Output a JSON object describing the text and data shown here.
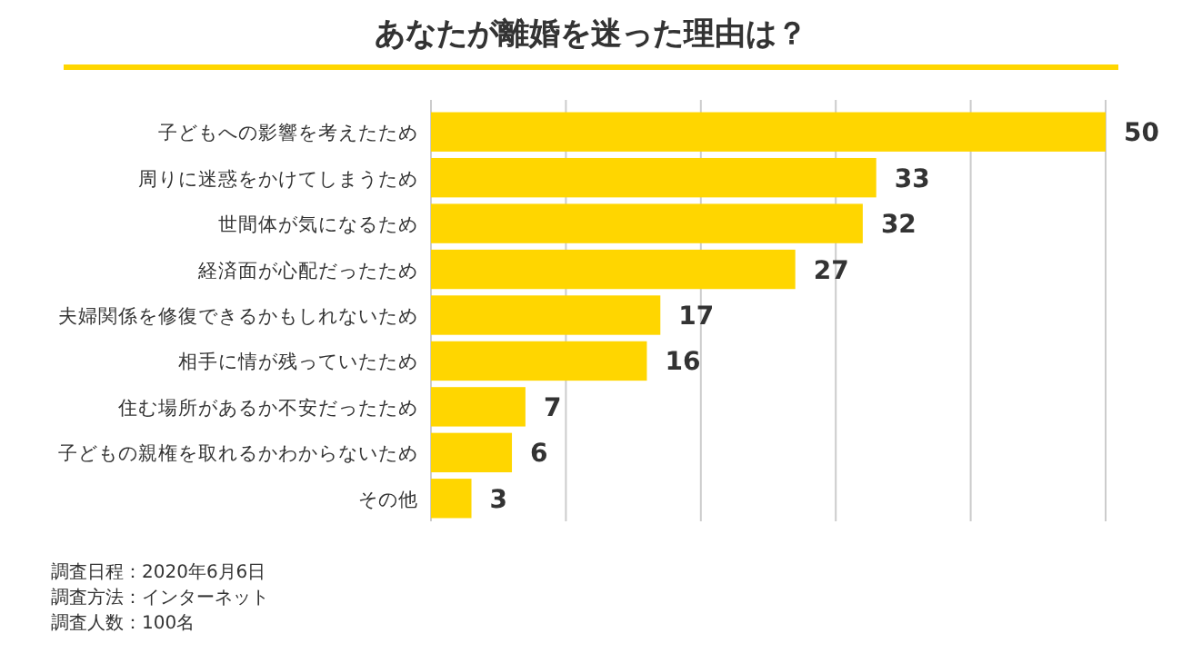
{
  "chart_data": {
    "type": "bar",
    "orientation": "horizontal",
    "title": "あなたが離婚を迷った理由は？",
    "categories": [
      "子どもへの影響を考えたため",
      "周りに迷惑をかけてしまうため",
      "世間体が気になるため",
      "経済面が心配だったため",
      "夫婦関係を修復できるかもしれないため",
      "相手に情が残っていたため",
      "住む場所があるか不安だったため",
      "子どもの親権を取れるかわからないため",
      "その他"
    ],
    "values": [
      50,
      33,
      32,
      27,
      17,
      16,
      7,
      6,
      3
    ],
    "color": "#ffd600",
    "xlim": [
      0,
      50
    ],
    "xticks": [
      {
        "value": 10,
        "label": null
      },
      {
        "value": 20,
        "label": null
      },
      {
        "value": 30,
        "label": null
      },
      {
        "value": 40,
        "label": null
      },
      {
        "value": 50,
        "label": null
      }
    ],
    "grid": "x",
    "tick_labels": "y",
    "data_labels": true,
    "annotations": [
      "調査日程：2020年6月6日",
      "調査方法：インターネット",
      "調査人数：100名"
    ]
  }
}
